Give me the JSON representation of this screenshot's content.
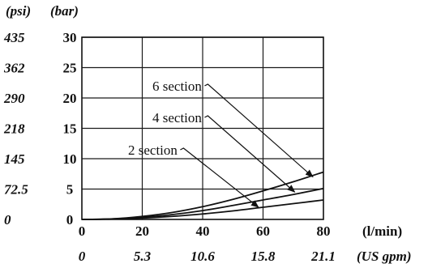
{
  "chart_data": {
    "type": "line",
    "x_label_primary": "(l/min)",
    "x_label_secondary": "(US gpm)",
    "y_label_primary": "(bar)",
    "y_label_secondary": "(psi)",
    "x_ticks_primary": [
      "0",
      "20",
      "40",
      "60",
      "80"
    ],
    "x_ticks_secondary": [
      "0",
      "5.3",
      "10.6",
      "15.8",
      "21.1"
    ],
    "y_ticks_primary": [
      "0",
      "5",
      "10",
      "15",
      "20",
      "25",
      "30"
    ],
    "y_ticks_secondary": [
      "0",
      "72.5",
      "145",
      "218",
      "290",
      "362",
      "435"
    ],
    "xlim": [
      0,
      80
    ],
    "ylim": [
      0,
      30
    ],
    "grid": true,
    "x": [
      0,
      10,
      20,
      30,
      40,
      50,
      60,
      70,
      80
    ],
    "series": [
      {
        "name": "2 section",
        "values": [
          0,
          0.06,
          0.22,
          0.5,
          0.9,
          1.4,
          2.0,
          2.6,
          3.2
        ]
      },
      {
        "name": "4 section",
        "values": [
          0,
          0.08,
          0.35,
          0.8,
          1.45,
          2.3,
          3.2,
          4.1,
          5.1
        ]
      },
      {
        "name": "6 section",
        "values": [
          0,
          0.1,
          0.5,
          1.15,
          2.1,
          3.3,
          4.7,
          6.2,
          7.8
        ]
      }
    ],
    "annotations": [
      {
        "series": "6 section",
        "text": "6 section",
        "x": 76.5,
        "y": 7.0
      },
      {
        "series": "4 section",
        "text": "4 section",
        "x": 70.5,
        "y": 4.5
      },
      {
        "series": "2 section",
        "text": "2 section",
        "x": 58.5,
        "y": 2.0
      }
    ]
  }
}
